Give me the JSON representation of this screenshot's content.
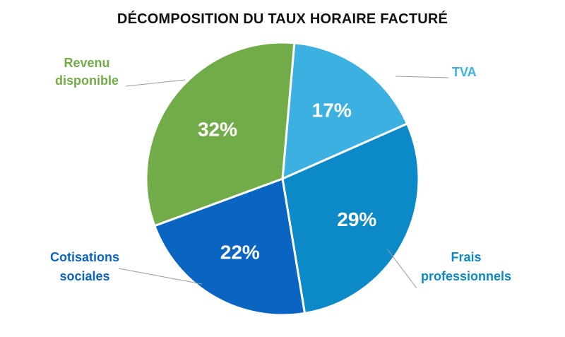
{
  "chart_data": {
    "type": "pie",
    "title": "DÉCOMPOSITION DU TAUX HORAIRE FACTURÉ",
    "slices": [
      {
        "label": [
          "TVA"
        ],
        "value": 17,
        "value_label": "17%",
        "color": "#3CB1E1"
      },
      {
        "label": [
          "Frais",
          "professionnels"
        ],
        "value": 29,
        "value_label": "29%",
        "color": "#0C89C7"
      },
      {
        "label": [
          "Cotisations",
          "sociales"
        ],
        "value": 22,
        "value_label": "22%",
        "color": "#0A64C2"
      },
      {
        "label": [
          "Revenu",
          "disponible"
        ],
        "value": 32,
        "value_label": "32%",
        "color": "#72AC49"
      }
    ],
    "start_angle_deg": 5,
    "direction": "clockwise",
    "legend": "none",
    "labels": "outside-with-leader-lines"
  }
}
